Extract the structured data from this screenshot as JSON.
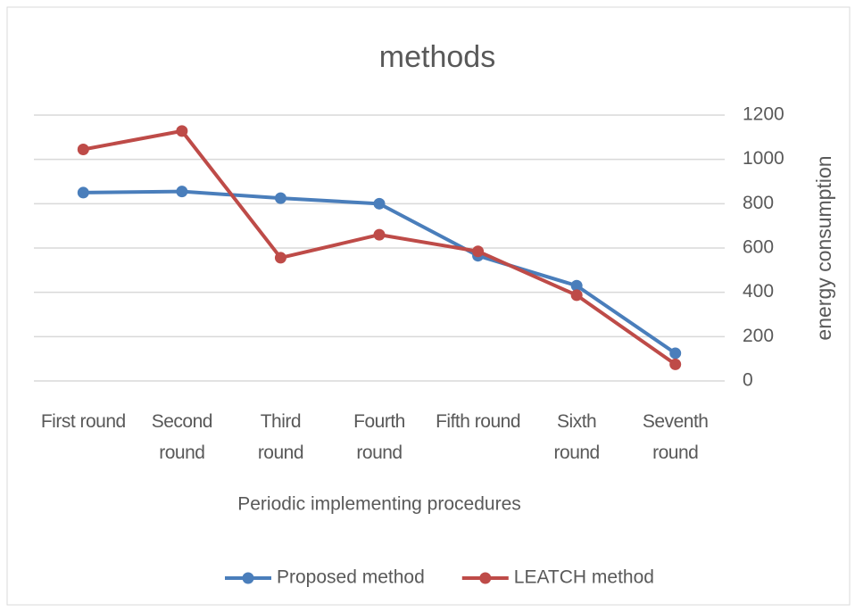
{
  "chart_data": {
    "type": "line",
    "title": "methods",
    "x_label": "Periodic implementing procedures",
    "y_label": "energy consumption",
    "categories": [
      "First round",
      "Second round",
      "Third round",
      "Fourth round",
      "Fifth round",
      "Sixth round",
      "Seventh round"
    ],
    "series": [
      {
        "name": "Proposed method",
        "color": "#4a7ebb",
        "values": [
          850,
          855,
          825,
          800,
          565,
          430,
          125
        ]
      },
      {
        "name": "LEATCH method",
        "color": "#be4b48",
        "values": [
          1045,
          1128,
          556,
          660,
          585,
          387,
          75
        ]
      }
    ],
    "ylim": [
      0,
      1200
    ],
    "yticks": [
      0,
      200,
      400,
      600,
      800,
      1000,
      1200
    ],
    "y_axis_side": "right",
    "grid": true,
    "legend": "bottom"
  }
}
